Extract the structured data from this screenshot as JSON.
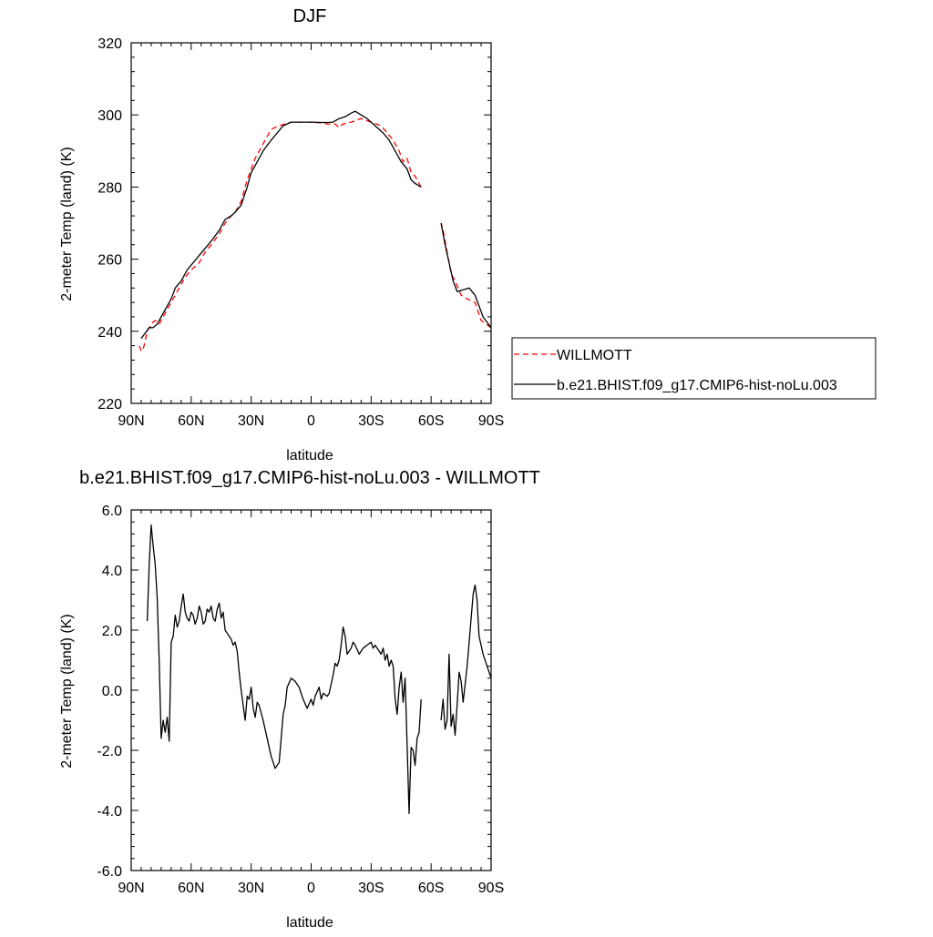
{
  "colors": {
    "model": "#000000",
    "obs": "#ff0000",
    "frame": "#000000",
    "legend_border": "#000000"
  },
  "chart_data": [
    {
      "type": "line",
      "title": "DJF",
      "xlabel": "latitude",
      "ylabel": "2-meter Temp (land) (K)",
      "x_direction": "north-to-south",
      "xlim": [
        90,
        -90
      ],
      "ylim": [
        220,
        320
      ],
      "x_ticks": [
        90,
        60,
        30,
        0,
        -30,
        -60,
        -90
      ],
      "x_tick_labels": [
        "90N",
        "60N",
        "30N",
        "0",
        "30S",
        "60S",
        "90S"
      ],
      "y_ticks": [
        220,
        240,
        260,
        280,
        300,
        320
      ],
      "y_tick_labels": [
        "220",
        "240",
        "260",
        "280",
        "300",
        "320"
      ],
      "grid": false,
      "legend": {
        "placement": "right",
        "entries": [
          "WILLMOTT",
          "b.e21.BHIST.f09_g17.CMIP6-hist-noLu.003"
        ]
      },
      "series": [
        {
          "name": "WILLMOTT",
          "style": "dashed",
          "color": "#ff0000",
          "points": [
            [
              -90,
              241
            ],
            [
              -85,
              243
            ],
            [
              -82,
              248
            ],
            [
              -78,
              249
            ],
            [
              -75,
              250
            ],
            [
              -72,
              254
            ],
            [
              -70,
              256
            ],
            [
              -68,
              262
            ],
            [
              -66,
              268
            ],
            [
              -65,
              270
            ],
            null,
            [
              -55,
              280
            ],
            [
              -52,
              283
            ],
            [
              -50,
              284
            ],
            [
              -48,
              288
            ],
            [
              -46,
              287
            ],
            [
              -44,
              290
            ],
            [
              -41,
              293
            ],
            [
              -38,
              295
            ],
            [
              -35,
              297
            ],
            [
              -30,
              298
            ],
            [
              -25,
              299
            ],
            [
              -20,
              298
            ],
            [
              -16,
              297.5
            ],
            [
              -14,
              296.5
            ],
            [
              -12,
              297.5
            ],
            [
              -8,
              297.5
            ],
            [
              -5,
              297.8
            ],
            [
              0,
              298
            ],
            [
              5,
              298
            ],
            [
              10,
              298
            ],
            [
              13,
              297.5
            ],
            [
              16,
              297
            ],
            [
              20,
              296
            ],
            [
              23,
              293
            ],
            [
              26,
              290
            ],
            [
              28,
              288
            ],
            [
              30,
              285
            ],
            [
              32,
              282
            ],
            [
              35,
              276
            ],
            [
              38,
              273
            ],
            [
              40,
              272
            ],
            [
              43,
              270
            ],
            [
              46,
              267
            ],
            [
              50,
              264
            ],
            [
              53,
              262
            ],
            [
              56,
              259
            ],
            [
              60,
              257
            ],
            [
              63,
              255
            ],
            [
              66,
              252
            ],
            [
              68,
              250
            ],
            [
              70,
              248
            ],
            [
              72,
              246
            ],
            [
              74,
              244
            ],
            [
              76,
              242
            ],
            [
              78,
              243
            ],
            [
              80,
              242
            ],
            [
              82,
              240
            ],
            [
              84,
              235
            ],
            [
              85,
              234.5
            ],
            [
              86,
              236
            ]
          ]
        },
        {
          "name": "b.e21.BHIST.f09_g17.CMIP6-hist-noLu.003",
          "style": "solid",
          "color": "#000000",
          "points": [
            [
              -90,
              241
            ],
            [
              -86,
              244
            ],
            [
              -82,
              250
            ],
            [
              -79,
              252
            ],
            [
              -76,
              251.5
            ],
            [
              -73,
              251
            ],
            [
              -71,
              254
            ],
            [
              -69,
              259
            ],
            [
              -67,
              264
            ],
            [
              -65,
              270
            ],
            null,
            [
              -55,
              280
            ],
            [
              -52,
              281
            ],
            [
              -50,
              282
            ],
            [
              -48,
              285
            ],
            [
              -45,
              287
            ],
            [
              -42,
              290
            ],
            [
              -39,
              293
            ],
            [
              -36,
              295
            ],
            [
              -32,
              297
            ],
            [
              -28,
              299
            ],
            [
              -25,
              300
            ],
            [
              -22,
              301
            ],
            [
              -20,
              300.5
            ],
            [
              -17,
              299.5
            ],
            [
              -14,
              299
            ],
            [
              -11,
              298
            ],
            [
              -8,
              297.9
            ],
            [
              -5,
              297.9
            ],
            [
              0,
              298
            ],
            [
              5,
              298
            ],
            [
              10,
              298
            ],
            [
              14,
              297
            ],
            [
              17,
              295
            ],
            [
              20,
              293
            ],
            [
              24,
              290
            ],
            [
              27,
              287
            ],
            [
              30,
              284
            ],
            [
              32,
              280
            ],
            [
              35,
              275
            ],
            [
              38,
              273
            ],
            [
              40,
              272
            ],
            [
              43,
              271
            ],
            [
              46,
              268
            ],
            [
              50,
              265
            ],
            [
              53,
              263
            ],
            [
              56,
              261
            ],
            [
              59,
              259
            ],
            [
              62,
              257
            ],
            [
              65,
              254
            ],
            [
              68,
              252
            ],
            [
              70,
              249
            ],
            [
              72,
              247
            ],
            [
              75,
              244
            ],
            [
              77,
              242
            ],
            [
              79,
              241
            ],
            [
              81,
              241
            ],
            [
              83,
              239.5
            ],
            [
              85,
              238
            ]
          ]
        }
      ]
    },
    {
      "type": "line",
      "title": "b.e21.BHIST.f09_g17.CMIP6-hist-noLu.003 - WILLMOTT",
      "xlabel": "latitude",
      "ylabel": "2-meter Temp (land) (K)",
      "x_direction": "north-to-south",
      "xlim": [
        90,
        -90
      ],
      "ylim": [
        -6,
        6
      ],
      "x_ticks": [
        90,
        60,
        30,
        0,
        -30,
        -60,
        -90
      ],
      "x_tick_labels": [
        "90N",
        "60N",
        "30N",
        "0",
        "30S",
        "60S",
        "90S"
      ],
      "y_ticks": [
        -6,
        -4,
        -2,
        0,
        2,
        4,
        6
      ],
      "y_tick_labels": [
        "-6.0",
        "-4.0",
        "-2.0",
        "0.0",
        "2.0",
        "4.0",
        "6.0"
      ],
      "grid": false,
      "series": [
        {
          "style": "solid",
          "color": "#000000",
          "points": [
            [
              -90,
              0.4
            ],
            [
              -88,
              0.8
            ],
            [
              -86,
              1.2
            ],
            [
              -84,
              1.8
            ],
            [
              -83,
              3.0
            ],
            [
              -82,
              3.5
            ],
            [
              -81,
              3.2
            ],
            [
              -80,
              2.4
            ],
            [
              -79,
              1.6
            ],
            [
              -78,
              0.8
            ],
            [
              -77,
              0.2
            ],
            [
              -76,
              -0.4
            ],
            [
              -75,
              0.3
            ],
            [
              -74,
              0.6
            ],
            [
              -73,
              -0.5
            ],
            [
              -72,
              -1.5
            ],
            [
              -71,
              -0.8
            ],
            [
              -70,
              -1.2
            ],
            [
              -69,
              1.2
            ],
            [
              -68,
              -1.0
            ],
            [
              -67,
              -1.3
            ],
            [
              -66,
              -0.3
            ],
            [
              -65,
              -1.0
            ],
            null,
            [
              -55,
              -0.3
            ],
            [
              -54,
              -1.4
            ],
            [
              -53,
              -1.6
            ],
            [
              -52,
              -2.5
            ],
            [
              -51,
              -2.0
            ],
            [
              -50,
              -1.9
            ],
            [
              -49,
              -4.1
            ],
            [
              -48,
              -1.8
            ],
            [
              -47,
              0.4
            ],
            [
              -46,
              -0.4
            ],
            [
              -45,
              0.6
            ],
            [
              -44,
              0.1
            ],
            [
              -43,
              -0.8
            ],
            [
              -42,
              -0.3
            ],
            [
              -41,
              0.8
            ],
            [
              -40,
              1.0
            ],
            [
              -39,
              0.8
            ],
            [
              -38,
              1.2
            ],
            [
              -37,
              1.0
            ],
            [
              -36,
              1.4
            ],
            [
              -35,
              1.2
            ],
            [
              -34,
              1.3
            ],
            [
              -33,
              1.4
            ],
            [
              -32,
              1.5
            ],
            [
              -31,
              1.4
            ],
            [
              -30,
              1.6
            ],
            [
              -28,
              1.5
            ],
            [
              -26,
              1.4
            ],
            [
              -25,
              1.3
            ],
            [
              -24,
              1.2
            ],
            [
              -22,
              1.5
            ],
            [
              -21,
              1.6
            ],
            [
              -20,
              1.4
            ],
            [
              -18,
              1.2
            ],
            [
              -17,
              1.8
            ],
            [
              -16,
              2.1
            ],
            [
              -15,
              1.5
            ],
            [
              -14,
              1.0
            ],
            [
              -13,
              0.8
            ],
            [
              -12,
              0.9
            ],
            [
              -11,
              0.5
            ],
            [
              -10,
              0.2
            ],
            [
              -9,
              -0.1
            ],
            [
              -8,
              -0.2
            ],
            [
              -6,
              -0.1
            ],
            [
              -5,
              -0.3
            ],
            [
              -4,
              0.1
            ],
            [
              -2,
              -0.2
            ],
            [
              -1,
              -0.5
            ],
            [
              0,
              -0.3
            ],
            [
              2,
              -0.6
            ],
            [
              4,
              -0.3
            ],
            [
              6,
              0.1
            ],
            [
              8,
              0.3
            ],
            [
              10,
              0.4
            ],
            [
              12,
              0.1
            ],
            [
              13,
              -0.5
            ],
            [
              14,
              -0.8
            ],
            [
              16,
              -2.4
            ],
            [
              18,
              -2.6
            ],
            [
              20,
              -2.2
            ],
            [
              22,
              -1.6
            ],
            [
              24,
              -1.0
            ],
            [
              26,
              -0.5
            ],
            [
              27,
              -0.4
            ],
            [
              28,
              -0.9
            ],
            [
              29,
              -0.6
            ],
            [
              30,
              0.1
            ],
            [
              31,
              -0.3
            ],
            [
              32,
              -0.2
            ],
            [
              33,
              -1.0
            ],
            [
              34,
              -0.5
            ],
            [
              35,
              0.0
            ],
            [
              36,
              0.6
            ],
            [
              37,
              1.3
            ],
            [
              38,
              1.6
            ],
            [
              39,
              1.5
            ],
            [
              40,
              1.7
            ],
            [
              41,
              1.8
            ],
            [
              42,
              1.9
            ],
            [
              43,
              2.0
            ],
            [
              44,
              2.6
            ],
            [
              45,
              2.4
            ],
            [
              46,
              2.9
            ],
            [
              47,
              2.7
            ],
            [
              48,
              2.3
            ],
            [
              49,
              2.4
            ],
            [
              50,
              2.8
            ],
            [
              51,
              2.6
            ],
            [
              52,
              2.7
            ],
            [
              53,
              2.3
            ],
            [
              54,
              2.2
            ],
            [
              55,
              2.6
            ],
            [
              56,
              2.8
            ],
            [
              57,
              2.4
            ],
            [
              58,
              2.2
            ],
            [
              59,
              2.5
            ],
            [
              60,
              2.6
            ],
            [
              61,
              2.3
            ],
            [
              62,
              2.4
            ],
            [
              63,
              2.6
            ],
            [
              64,
              3.2
            ],
            [
              65,
              2.8
            ],
            [
              66,
              2.3
            ],
            [
              67,
              2.1
            ],
            [
              68,
              2.5
            ],
            [
              69,
              1.8
            ],
            [
              70,
              1.6
            ],
            [
              71,
              -1.7
            ],
            [
              72,
              -0.9
            ],
            [
              73,
              -1.4
            ],
            [
              74,
              -1.0
            ],
            [
              75,
              -1.6
            ],
            [
              76,
              1.0
            ],
            [
              77,
              3.1
            ],
            [
              78,
              4.2
            ],
            [
              79,
              4.8
            ],
            [
              80,
              5.5
            ],
            [
              81,
              4.2
            ],
            [
              82,
              2.3
            ]
          ]
        }
      ]
    }
  ]
}
